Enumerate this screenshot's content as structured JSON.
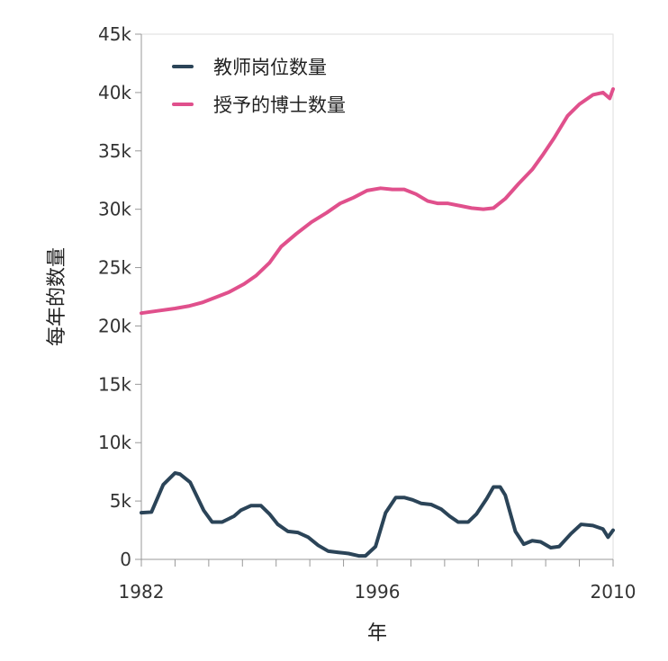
{
  "chart_data": {
    "type": "line",
    "xlabel": "年",
    "ylabel": "每年的数量",
    "xlim": [
      1982,
      2010
    ],
    "ylim": [
      0,
      45000
    ],
    "x_ticks": [
      1982,
      1996,
      2010
    ],
    "y_ticks": [
      0,
      5000,
      10000,
      15000,
      20000,
      25000,
      30000,
      35000,
      40000,
      45000
    ],
    "y_tick_labels": [
      "0",
      "5k",
      "10k",
      "15k",
      "20k",
      "25k",
      "30k",
      "35k",
      "40k",
      "45k"
    ],
    "x_tick_labels": [
      "1982",
      "1996",
      "2010"
    ],
    "grid": false,
    "legend_position": "top-left",
    "series": [
      {
        "name": "教师岗位数量",
        "color": "#2b4458",
        "x": [
          1982,
          1982.6,
          1983.3,
          1984,
          1984.3,
          1984.9,
          1985.7,
          1986.2,
          1986.8,
          1987.5,
          1987.9,
          1988.5,
          1989.1,
          1989.6,
          1990.1,
          1990.7,
          1991.3,
          1991.9,
          1992.5,
          1993.1,
          1993.7,
          1994.3,
          1994.9,
          1995.3,
          1995.9,
          1996.5,
          1997.1,
          1997.6,
          1998.1,
          1998.6,
          1999.2,
          1999.8,
          2000.3,
          2000.8,
          2001.4,
          2001.9,
          2002.5,
          2002.9,
          2003.3,
          2003.6,
          2004.2,
          2004.7,
          2005.2,
          2005.7,
          2006.3,
          2006.8,
          2007.5,
          2008.1,
          2008.8,
          2009.4,
          2009.7,
          2010
        ],
        "values": [
          4000,
          4050,
          6400,
          7400,
          7300,
          6600,
          4200,
          3200,
          3200,
          3700,
          4200,
          4600,
          4600,
          3900,
          3000,
          2400,
          2300,
          1900,
          1200,
          700,
          600,
          500,
          300,
          300,
          1100,
          4000,
          5300,
          5300,
          5100,
          4800,
          4700,
          4300,
          3700,
          3200,
          3200,
          3900,
          5200,
          6200,
          6200,
          5500,
          2400,
          1300,
          1600,
          1500,
          1000,
          1100,
          2200,
          3000,
          2900,
          2600,
          1900,
          2500
        ]
      },
      {
        "name": "授予的博士数量",
        "color": "#e0508c",
        "x": [
          1982,
          1983,
          1984,
          1984.8,
          1985.6,
          1986.5,
          1987.2,
          1988.1,
          1988.8,
          1989.6,
          1990.3,
          1991.2,
          1992.1,
          1993,
          1993.8,
          1994.6,
          1995.4,
          1996.2,
          1996.9,
          1997.6,
          1998.3,
          1999,
          1999.6,
          2000.2,
          2000.9,
          2001.6,
          2002.3,
          2002.9,
          2003.6,
          2004.4,
          2005.2,
          2005.8,
          2006.5,
          2007.3,
          2008,
          2008.8,
          2009.4,
          2009.8,
          2010
        ],
        "values": [
          21100,
          21300,
          21500,
          21700,
          22000,
          22500,
          22900,
          23600,
          24300,
          25400,
          26800,
          27900,
          28900,
          29700,
          30500,
          31000,
          31600,
          31800,
          31700,
          31700,
          31300,
          30700,
          30500,
          30500,
          30300,
          30100,
          30000,
          30100,
          30900,
          32200,
          33400,
          34600,
          36100,
          38000,
          39000,
          39800,
          40000,
          39500,
          40300
        ]
      }
    ]
  }
}
